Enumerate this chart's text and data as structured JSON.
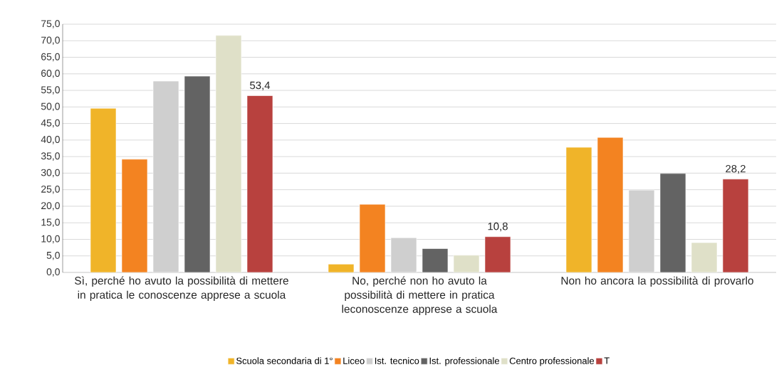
{
  "chart_data": {
    "type": "bar",
    "categories": [
      "Sì, perché ho avuto la possibilità di mettere in pratica le conoscenze apprese a scuola",
      "No, perché non ho avuto la possibilità di mettere in pratica leconoscenze apprese a scuola",
      "Non ho ancora la possibilità di provarlo"
    ],
    "series": [
      {
        "name": "Scuola secondaria di 1°",
        "color": "#f0b429",
        "values": [
          49.6,
          2.5,
          37.8
        ]
      },
      {
        "name": "Liceo",
        "color": "#f38321",
        "values": [
          34.2,
          20.6,
          40.8
        ]
      },
      {
        "name": "Ist. tecnico",
        "color": "#cfcfcf",
        "values": [
          57.8,
          10.5,
          24.9
        ]
      },
      {
        "name": "Ist. professionale",
        "color": "#636363",
        "values": [
          59.3,
          7.2,
          29.9
        ]
      },
      {
        "name": "Centro professionale",
        "color": "#dfe0c8",
        "values": [
          71.6,
          5.2,
          9.0
        ]
      },
      {
        "name": "T",
        "color": "#b8413e",
        "values": [
          53.4,
          10.8,
          28.2
        ],
        "value_labels": [
          "53,4",
          "10,8",
          "28,2"
        ]
      }
    ],
    "ylim": [
      0,
      75
    ],
    "yticks": [
      {
        "value": 0,
        "label": "0,0"
      },
      {
        "value": 5,
        "label": "5,0"
      },
      {
        "value": 10,
        "label": "10,0"
      },
      {
        "value": 15,
        "label": "15,0"
      },
      {
        "value": 20,
        "label": "20,0"
      },
      {
        "value": 25,
        "label": "25,0"
      },
      {
        "value": 30,
        "label": "30,0"
      },
      {
        "value": 35,
        "label": "35,0"
      },
      {
        "value": 40,
        "label": "40,0"
      },
      {
        "value": 45,
        "label": "45,0"
      },
      {
        "value": 50,
        "label": "50,0"
      },
      {
        "value": 55,
        "label": "55,0"
      },
      {
        "value": 60,
        "label": "60,0"
      },
      {
        "value": 65,
        "label": "65,0"
      },
      {
        "value": 70,
        "label": "70,0"
      },
      {
        "value": 75,
        "label": "75,0"
      }
    ],
    "grid": "y",
    "legend": "bottom"
  }
}
